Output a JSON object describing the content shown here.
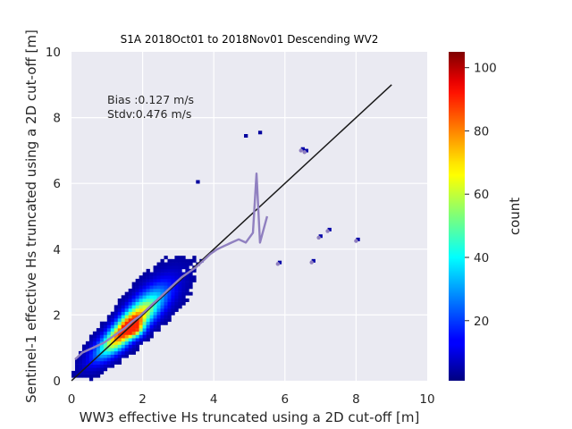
{
  "chart_data": {
    "type": "heatmap",
    "title": "S1A 2018Oct01 to 2018Nov01 Descending WV2",
    "xlabel": "WW3 effective Hs truncated using a 2D cut-off [m]",
    "ylabel": "Sentinel-1 effective Hs truncated using a 2D cut-off [m]",
    "xlim": [
      0,
      10
    ],
    "ylim": [
      0,
      10
    ],
    "xticks": [
      "0",
      "2",
      "4",
      "6",
      "8",
      "10"
    ],
    "yticks": [
      "0",
      "2",
      "4",
      "6",
      "8",
      "10"
    ],
    "grid": true,
    "annotations": [
      "Bias :0.127 m/s",
      "Stdv:0.476 m/s"
    ],
    "colorbar": {
      "label": "count",
      "colormap": "jet",
      "range": [
        1,
        105
      ],
      "ticks": [
        "20",
        "40",
        "60",
        "80",
        "100"
      ]
    },
    "identity_line": {
      "x": [
        0,
        9
      ],
      "y": [
        0,
        9
      ],
      "color": "#1a1a1a"
    },
    "mean_curve": {
      "color": "#9080c0",
      "x": [
        0.1,
        0.3,
        0.5,
        0.7,
        0.9,
        1.1,
        1.3,
        1.5,
        1.7,
        1.9,
        2.1,
        2.3,
        2.5,
        2.7,
        2.9,
        3.1,
        3.3,
        3.5,
        3.7,
        3.9,
        4.1,
        4.3,
        4.5,
        4.7,
        4.9,
        5.1,
        5.2,
        5.3,
        5.4,
        5.5
      ],
      "y": [
        0.65,
        0.85,
        0.95,
        1.05,
        1.15,
        1.3,
        1.45,
        1.6,
        1.8,
        1.95,
        2.15,
        2.35,
        2.55,
        2.75,
        2.95,
        3.15,
        3.3,
        3.45,
        3.65,
        3.85,
        4.0,
        4.1,
        4.2,
        4.3,
        4.2,
        4.5,
        6.3,
        4.2,
        4.6,
        5.0
      ]
    },
    "outliers": [
      {
        "x": 6.45,
        "y": 7.0,
        "count": 2
      },
      {
        "x": 6.55,
        "y": 6.95,
        "count": 2
      },
      {
        "x": 7.2,
        "y": 4.55,
        "count": 2
      },
      {
        "x": 6.95,
        "y": 4.35,
        "count": 2
      },
      {
        "x": 8.0,
        "y": 4.25,
        "count": 2
      },
      {
        "x": 6.75,
        "y": 3.6,
        "count": 2
      },
      {
        "x": 5.8,
        "y": 3.55,
        "count": 2
      },
      {
        "x": 5.25,
        "y": 7.5,
        "count": 1
      },
      {
        "x": 4.85,
        "y": 7.4,
        "count": 1
      },
      {
        "x": 3.5,
        "y": 6.0,
        "count": 1
      }
    ],
    "density_model": {
      "core_center": [
        1.75,
        1.6
      ],
      "note": "density highest near (1.8, 1.5), spreading along the 1:1 line up to Hs ~5.5 m"
    }
  }
}
